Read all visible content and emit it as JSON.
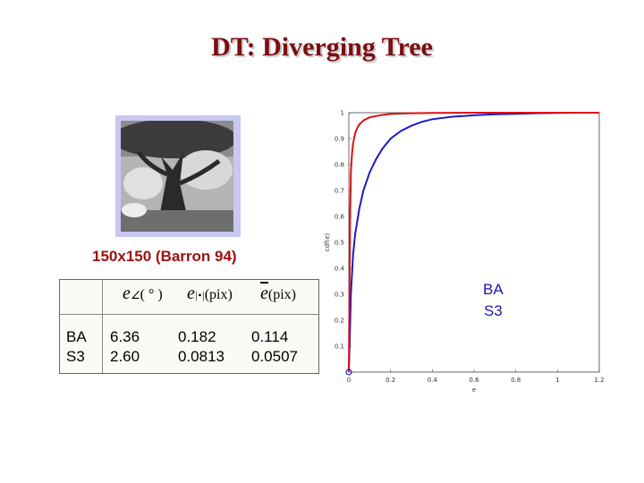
{
  "slide": {
    "title": "DT: Diverging Tree",
    "caption": "150x150 (Barron 94)"
  },
  "table": {
    "headers": {
      "col1_main": "e",
      "col1_sub": "∠",
      "col1_par": "( ° )",
      "col2_main": "e",
      "col2_sub": "|•|",
      "col2_par": "(pix)",
      "col3_main": "e",
      "col3_par": "(pix)"
    },
    "rows": [
      {
        "method": "BA",
        "angular": "6.36",
        "norm": "0.182",
        "mean": "0.114"
      },
      {
        "method": "S3",
        "angular": "2.60",
        "norm": "0.0813",
        "mean": "0.0507"
      }
    ]
  },
  "legend": {
    "items": [
      "BA",
      "S3"
    ]
  },
  "chart_data": {
    "type": "line",
    "xlabel": "e",
    "ylabel": "cdf(e)",
    "xlim": [
      0,
      1.2
    ],
    "ylim": [
      0,
      1
    ],
    "xticks": [
      "0",
      "0.2",
      "0.4",
      "0.6",
      "0.8",
      "1",
      "1.2"
    ],
    "yticks": [
      "0.1",
      "0.2",
      "0.3",
      "0.4",
      "0.5",
      "0.6",
      "0.7",
      "0.8",
      "0.9",
      "1"
    ],
    "grid": false,
    "series": [
      {
        "name": "BA",
        "color": "#1a1acc",
        "x": [
          0,
          0.005,
          0.01,
          0.02,
          0.03,
          0.05,
          0.07,
          0.1,
          0.13,
          0.16,
          0.2,
          0.25,
          0.3,
          0.35,
          0.4,
          0.5,
          0.6,
          0.7,
          0.8,
          0.9,
          1.0,
          1.1,
          1.2
        ],
        "y": [
          0,
          0.15,
          0.3,
          0.45,
          0.53,
          0.63,
          0.7,
          0.77,
          0.82,
          0.86,
          0.9,
          0.93,
          0.95,
          0.965,
          0.975,
          0.985,
          0.99,
          0.994,
          0.996,
          0.998,
          0.999,
          1.0,
          1.0
        ]
      },
      {
        "name": "S3",
        "color": "#dd1111",
        "x": [
          0,
          0.003,
          0.006,
          0.01,
          0.015,
          0.02,
          0.03,
          0.04,
          0.05,
          0.07,
          0.1,
          0.15,
          0.2,
          0.3,
          0.4,
          0.6,
          0.8,
          1.0,
          1.2
        ],
        "y": [
          0,
          0.3,
          0.6,
          0.77,
          0.84,
          0.88,
          0.92,
          0.94,
          0.955,
          0.97,
          0.982,
          0.99,
          0.995,
          0.998,
          0.999,
          1.0,
          1.0,
          1.0,
          1.0
        ]
      }
    ]
  }
}
